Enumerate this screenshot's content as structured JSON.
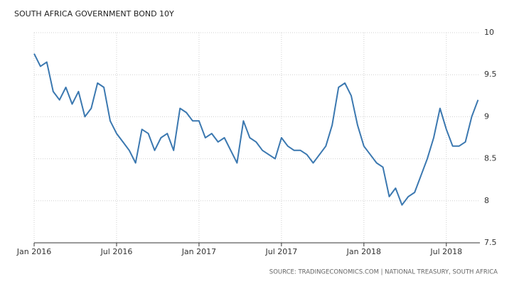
{
  "chart_data": {
    "type": "line",
    "title": "SOUTH AFRICA GOVERNMENT BOND 10Y",
    "source": "SOURCE: TRADINGECONOMICS.COM | NATIONAL TREASURY, SOUTH AFRICA",
    "categories": [
      "Jan 2016",
      null,
      null,
      null,
      null,
      null,
      null,
      null,
      null,
      null,
      null,
      null,
      null,
      "Jul 2016",
      null,
      null,
      null,
      null,
      null,
      null,
      null,
      null,
      null,
      null,
      null,
      null,
      "Jan 2017",
      null,
      null,
      null,
      null,
      null,
      null,
      null,
      null,
      null,
      null,
      null,
      null,
      "Jul 2017",
      null,
      null,
      null,
      null,
      null,
      null,
      null,
      null,
      null,
      null,
      null,
      null,
      "Jan 2018",
      null,
      null,
      null,
      null,
      null,
      null,
      null,
      null,
      null,
      null,
      null,
      null,
      "Jul 2018",
      null,
      null,
      null,
      null,
      null
    ],
    "series": [
      {
        "name": "South Africa Government Bond 10Y",
        "color": "#3b78b0",
        "values": [
          9.75,
          9.6,
          9.65,
          9.3,
          9.2,
          9.35,
          9.15,
          9.3,
          9.0,
          9.1,
          9.4,
          9.35,
          8.95,
          8.8,
          8.7,
          8.6,
          8.45,
          8.85,
          8.8,
          8.6,
          8.75,
          8.8,
          8.6,
          9.1,
          9.05,
          8.95,
          8.95,
          8.75,
          8.8,
          8.7,
          8.75,
          8.6,
          8.45,
          8.95,
          8.75,
          8.7,
          8.6,
          8.55,
          8.5,
          8.75,
          8.65,
          8.6,
          8.6,
          8.55,
          8.45,
          8.55,
          8.65,
          8.9,
          9.35,
          9.4,
          9.25,
          8.9,
          8.65,
          8.55,
          8.45,
          8.4,
          8.05,
          8.15,
          7.95,
          8.05,
          8.1,
          8.3,
          8.5,
          8.75,
          9.1,
          8.85,
          8.65,
          8.65,
          8.7,
          9.0,
          9.2
        ]
      }
    ],
    "ylim": [
      7.5,
      10
    ],
    "yticks": [
      7.5,
      8,
      8.5,
      9,
      9.5,
      10
    ],
    "grid": true,
    "y_axis_side": "right"
  }
}
